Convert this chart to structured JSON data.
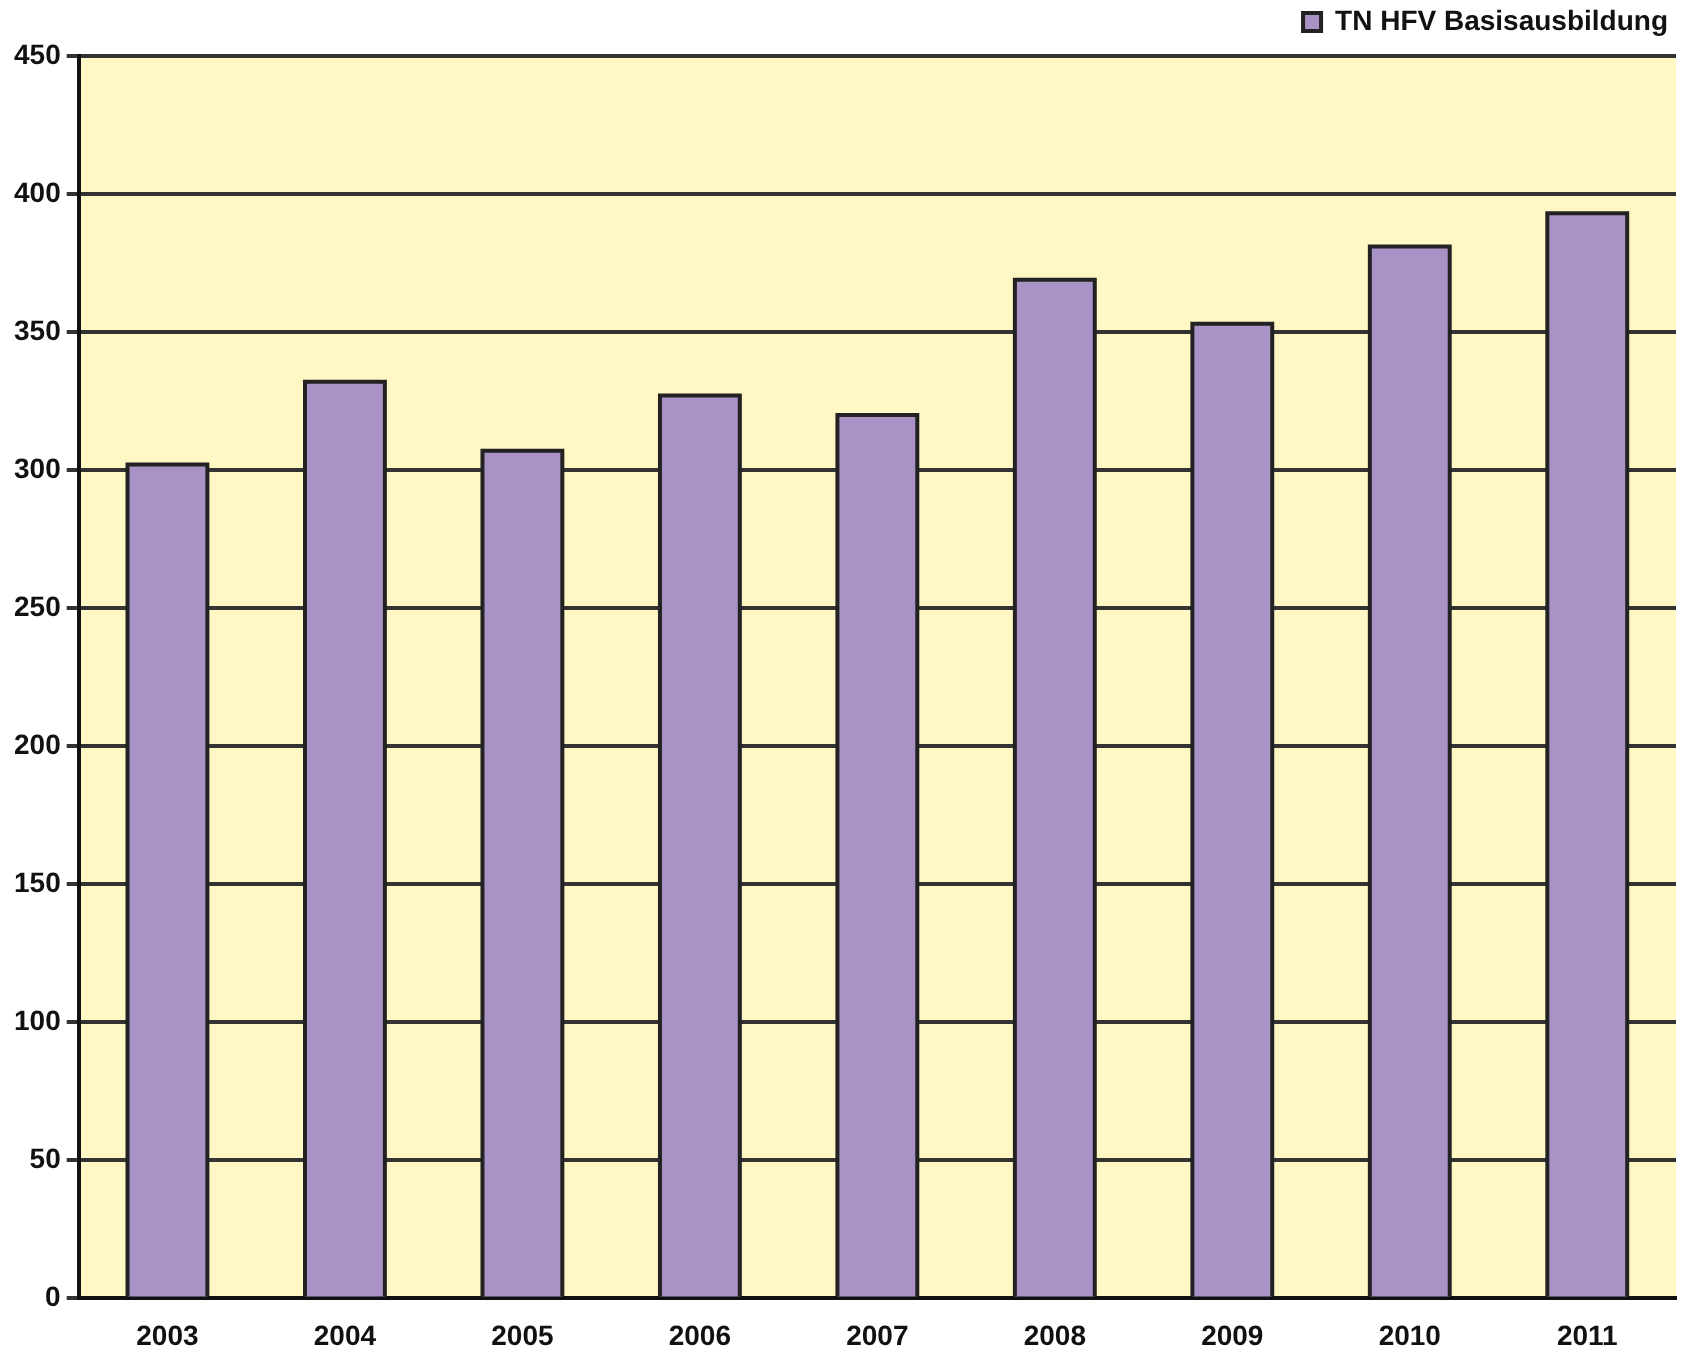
{
  "chart_data": {
    "type": "bar",
    "categories": [
      "2003",
      "2004",
      "2005",
      "2006",
      "2007",
      "2008",
      "2009",
      "2010",
      "2011"
    ],
    "series": [
      {
        "name": "TN HFV Basisausbildung",
        "color": "#a992c6",
        "values": [
          302,
          332,
          307,
          327,
          320,
          369,
          353,
          381,
          393
        ]
      }
    ],
    "ylim": [
      0,
      450
    ],
    "yticks": [
      0,
      50,
      100,
      150,
      200,
      250,
      300,
      350,
      400,
      450
    ],
    "grid": "y",
    "legend": "top right"
  }
}
